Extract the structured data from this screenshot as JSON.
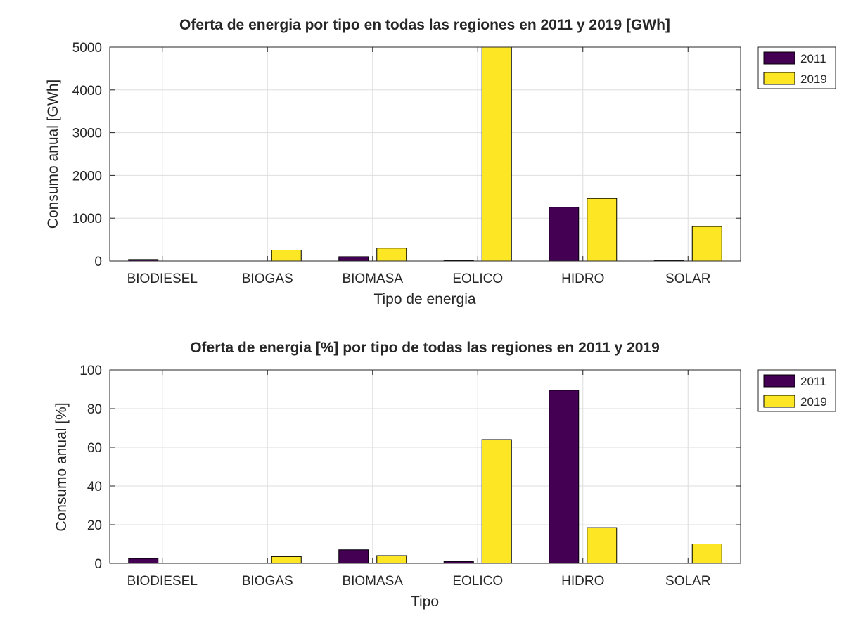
{
  "chart_data": [
    {
      "type": "bar",
      "title": "Oferta de energia por tipo en todas las regiones en 2011 y 2019 [GWh]",
      "xlabel": "Tipo de energia",
      "ylabel": "Consumo anual [GWh]",
      "categories": [
        "BIODIESEL",
        "BIOGAS",
        "BIOMASA",
        "EOLICO",
        "HIDRO",
        "SOLAR"
      ],
      "ylim": [
        0,
        5000
      ],
      "yticks": [
        0,
        1000,
        2000,
        3000,
        4000,
        5000
      ],
      "grid": true,
      "legend_position": "outside-top-right",
      "series": [
        {
          "name": "2011",
          "color": "#440154",
          "values": [
            35,
            0,
            100,
            15,
            1255,
            8
          ]
        },
        {
          "name": "2019",
          "color": "#fde725",
          "values": [
            0,
            255,
            300,
            5000,
            1460,
            805
          ]
        }
      ]
    },
    {
      "type": "bar",
      "title": "Oferta de energia [%] por tipo de todas las regiones en 2011 y 2019",
      "xlabel": "Tipo",
      "ylabel": "Consumo anual [%]",
      "categories": [
        "BIODIESEL",
        "BIOGAS",
        "BIOMASA",
        "EOLICO",
        "HIDRO",
        "SOLAR"
      ],
      "ylim": [
        0,
        100
      ],
      "yticks": [
        0,
        20,
        40,
        60,
        80,
        100
      ],
      "grid": true,
      "legend_position": "outside-top-right",
      "series": [
        {
          "name": "2011",
          "color": "#440154",
          "values": [
            2.5,
            0,
            7,
            1,
            89.5,
            0
          ]
        },
        {
          "name": "2019",
          "color": "#fde725",
          "values": [
            0,
            3.5,
            4,
            64,
            18.5,
            10
          ]
        }
      ]
    }
  ]
}
